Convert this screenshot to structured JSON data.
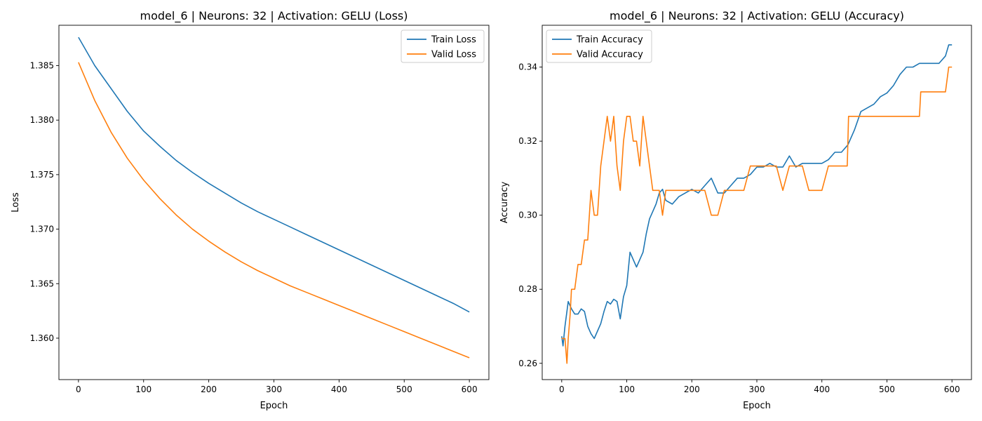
{
  "chart_data": [
    {
      "type": "line",
      "title": "model_6 | Neurons: 32 | Activation: GELU (Loss)",
      "xlabel": "Epoch",
      "ylabel": "Loss",
      "xlim": [
        -30,
        630
      ],
      "ylim": [
        1.3562,
        1.3887
      ],
      "xticks": [
        0,
        100,
        200,
        300,
        400,
        500,
        600
      ],
      "yticks": [
        1.36,
        1.365,
        1.37,
        1.375,
        1.38,
        1.385
      ],
      "ytick_labels": [
        "1.360",
        "1.365",
        "1.370",
        "1.375",
        "1.380",
        "1.385"
      ],
      "grid": false,
      "legend": "top-right",
      "series": [
        {
          "name": "Train Loss",
          "color": "#1f77b4",
          "x": [
            0,
            25,
            50,
            75,
            100,
            125,
            150,
            175,
            200,
            225,
            250,
            275,
            300,
            325,
            350,
            375,
            400,
            425,
            450,
            475,
            500,
            525,
            550,
            575,
            600
          ],
          "y": [
            1.3876,
            1.385,
            1.3829,
            1.3808,
            1.379,
            1.3776,
            1.3763,
            1.3752,
            1.3742,
            1.3733,
            1.3724,
            1.3716,
            1.3709,
            1.3702,
            1.3695,
            1.3688,
            1.3681,
            1.3674,
            1.3667,
            1.366,
            1.3653,
            1.3646,
            1.3639,
            1.3632,
            1.3624
          ]
        },
        {
          "name": "Valid Loss",
          "color": "#ff7f0e",
          "x": [
            0,
            25,
            50,
            75,
            100,
            125,
            150,
            175,
            200,
            225,
            250,
            275,
            300,
            325,
            350,
            375,
            400,
            425,
            450,
            475,
            500,
            525,
            550,
            575,
            600
          ],
          "y": [
            1.3853,
            1.3818,
            1.3789,
            1.3765,
            1.3745,
            1.3728,
            1.3713,
            1.37,
            1.3689,
            1.3679,
            1.367,
            1.3662,
            1.3655,
            1.3648,
            1.3642,
            1.3636,
            1.363,
            1.3624,
            1.3618,
            1.3612,
            1.3606,
            1.36,
            1.3594,
            1.3588,
            1.3582
          ]
        }
      ]
    },
    {
      "type": "line",
      "title": "model_6 | Neurons: 32 | Activation: GELU (Accuracy)",
      "xlabel": "Epoch",
      "ylabel": "Accuracy",
      "xlim": [
        -30,
        630
      ],
      "ylim": [
        0.2556,
        0.3513
      ],
      "xticks": [
        0,
        100,
        200,
        300,
        400,
        500,
        600
      ],
      "yticks": [
        0.26,
        0.28,
        0.3,
        0.32,
        0.34
      ],
      "ytick_labels": [
        "0.26",
        "0.28",
        "0.30",
        "0.32",
        "0.34"
      ],
      "grid": false,
      "legend": "top-left",
      "series": [
        {
          "name": "Train Accuracy",
          "color": "#1f77b4",
          "x": [
            0,
            2,
            5,
            8,
            10,
            15,
            20,
            25,
            30,
            35,
            40,
            45,
            50,
            55,
            60,
            65,
            70,
            75,
            80,
            85,
            90,
            95,
            100,
            105,
            110,
            115,
            120,
            125,
            130,
            135,
            140,
            145,
            150,
            155,
            160,
            170,
            180,
            190,
            200,
            210,
            220,
            230,
            240,
            250,
            260,
            270,
            280,
            290,
            300,
            310,
            320,
            330,
            340,
            350,
            360,
            370,
            380,
            390,
            400,
            410,
            420,
            430,
            440,
            450,
            460,
            470,
            480,
            490,
            500,
            510,
            520,
            530,
            540,
            550,
            560,
            570,
            580,
            590,
            595,
            600
          ],
          "y": [
            0.2673,
            0.2647,
            0.27,
            0.274,
            0.2767,
            0.2747,
            0.2733,
            0.2733,
            0.2747,
            0.274,
            0.27,
            0.268,
            0.2667,
            0.2687,
            0.2707,
            0.274,
            0.2767,
            0.276,
            0.2773,
            0.2767,
            0.272,
            0.278,
            0.281,
            0.29,
            0.288,
            0.286,
            0.288,
            0.29,
            0.295,
            0.299,
            0.301,
            0.303,
            0.306,
            0.307,
            0.304,
            0.303,
            0.305,
            0.306,
            0.307,
            0.306,
            0.308,
            0.31,
            0.306,
            0.306,
            0.308,
            0.31,
            0.31,
            0.311,
            0.313,
            0.313,
            0.314,
            0.313,
            0.313,
            0.316,
            0.313,
            0.314,
            0.314,
            0.314,
            0.314,
            0.315,
            0.317,
            0.317,
            0.319,
            0.323,
            0.328,
            0.329,
            0.33,
            0.332,
            0.333,
            0.335,
            0.338,
            0.34,
            0.34,
            0.341,
            0.341,
            0.341,
            0.341,
            0.343,
            0.346,
            0.346
          ]
        },
        {
          "name": "Valid Accuracy",
          "color": "#ff7f0e",
          "x": [
            0,
            5,
            8,
            10,
            13,
            15,
            20,
            25,
            30,
            35,
            40,
            45,
            50,
            55,
            60,
            65,
            70,
            75,
            80,
            85,
            90,
            95,
            100,
            105,
            110,
            115,
            120,
            125,
            130,
            135,
            140,
            145,
            150,
            155,
            160,
            170,
            180,
            190,
            200,
            210,
            220,
            230,
            240,
            250,
            260,
            270,
            280,
            290,
            300,
            310,
            320,
            330,
            340,
            350,
            360,
            370,
            380,
            390,
            400,
            410,
            420,
            430,
            439,
            441,
            450,
            460,
            470,
            480,
            490,
            500,
            510,
            520,
            530,
            540,
            550,
            552,
            560,
            570,
            580,
            590,
            595,
            600
          ],
          "y": [
            0.2667,
            0.2667,
            0.26,
            0.2667,
            0.2733,
            0.28,
            0.28,
            0.2867,
            0.2867,
            0.2933,
            0.2933,
            0.3067,
            0.3,
            0.3,
            0.3133,
            0.32,
            0.3267,
            0.32,
            0.3267,
            0.3133,
            0.3067,
            0.32,
            0.3267,
            0.3267,
            0.32,
            0.32,
            0.3133,
            0.3267,
            0.32,
            0.3133,
            0.3067,
            0.3067,
            0.3067,
            0.3,
            0.3067,
            0.3067,
            0.3067,
            0.3067,
            0.3067,
            0.3067,
            0.3067,
            0.3,
            0.3,
            0.3067,
            0.3067,
            0.3067,
            0.3067,
            0.3133,
            0.3133,
            0.3133,
            0.3133,
            0.3133,
            0.3067,
            0.3133,
            0.3133,
            0.3133,
            0.3067,
            0.3067,
            0.3067,
            0.3133,
            0.3133,
            0.3133,
            0.3133,
            0.3267,
            0.3267,
            0.3267,
            0.3267,
            0.3267,
            0.3267,
            0.3267,
            0.3267,
            0.3267,
            0.3267,
            0.3267,
            0.3267,
            0.3333,
            0.3333,
            0.3333,
            0.3333,
            0.3333,
            0.34,
            0.34
          ]
        }
      ]
    }
  ]
}
